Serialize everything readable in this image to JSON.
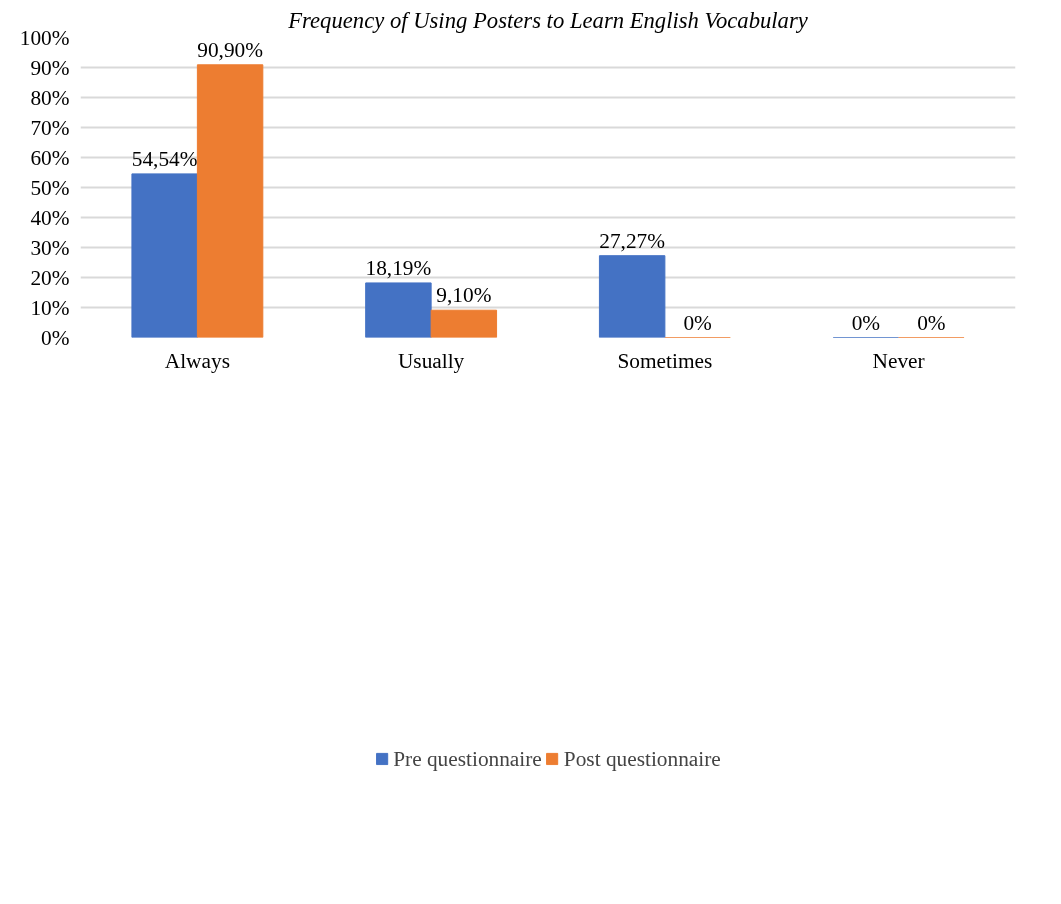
{
  "chart_data": {
    "type": "bar",
    "title": "Frequency of Using Posters to Learn English Vocabulary",
    "categories": [
      "Always",
      "Usually",
      "Sometimes",
      "Never"
    ],
    "series": [
      {
        "name": "Pre questionnaire",
        "color": "#4472c4",
        "values": [
          54.54,
          18.19,
          27.27,
          0
        ],
        "value_labels": [
          "54,54%",
          "18,19%",
          "27,27%",
          "0%"
        ]
      },
      {
        "name": "Post questionnaire",
        "color": "#ed7d31",
        "values": [
          90.9,
          9.1,
          0,
          0
        ],
        "value_labels": [
          "90,90%",
          "9,10%",
          "0%",
          "0%"
        ]
      }
    ],
    "ylim": [
      0,
      100
    ],
    "yticks": [
      {
        "value": 0,
        "label": "0%"
      },
      {
        "value": 10,
        "label": "10%"
      },
      {
        "value": 20,
        "label": "20%"
      },
      {
        "value": 30,
        "label": "30%"
      },
      {
        "value": 40,
        "label": "40%"
      },
      {
        "value": 50,
        "label": "50%"
      },
      {
        "value": 60,
        "label": "60%"
      },
      {
        "value": 70,
        "label": "70%"
      },
      {
        "value": 80,
        "label": "80%"
      },
      {
        "value": 90,
        "label": "90%"
      },
      {
        "value": 100,
        "label": "100%"
      }
    ],
    "grid": "y",
    "legend": "bottom"
  }
}
